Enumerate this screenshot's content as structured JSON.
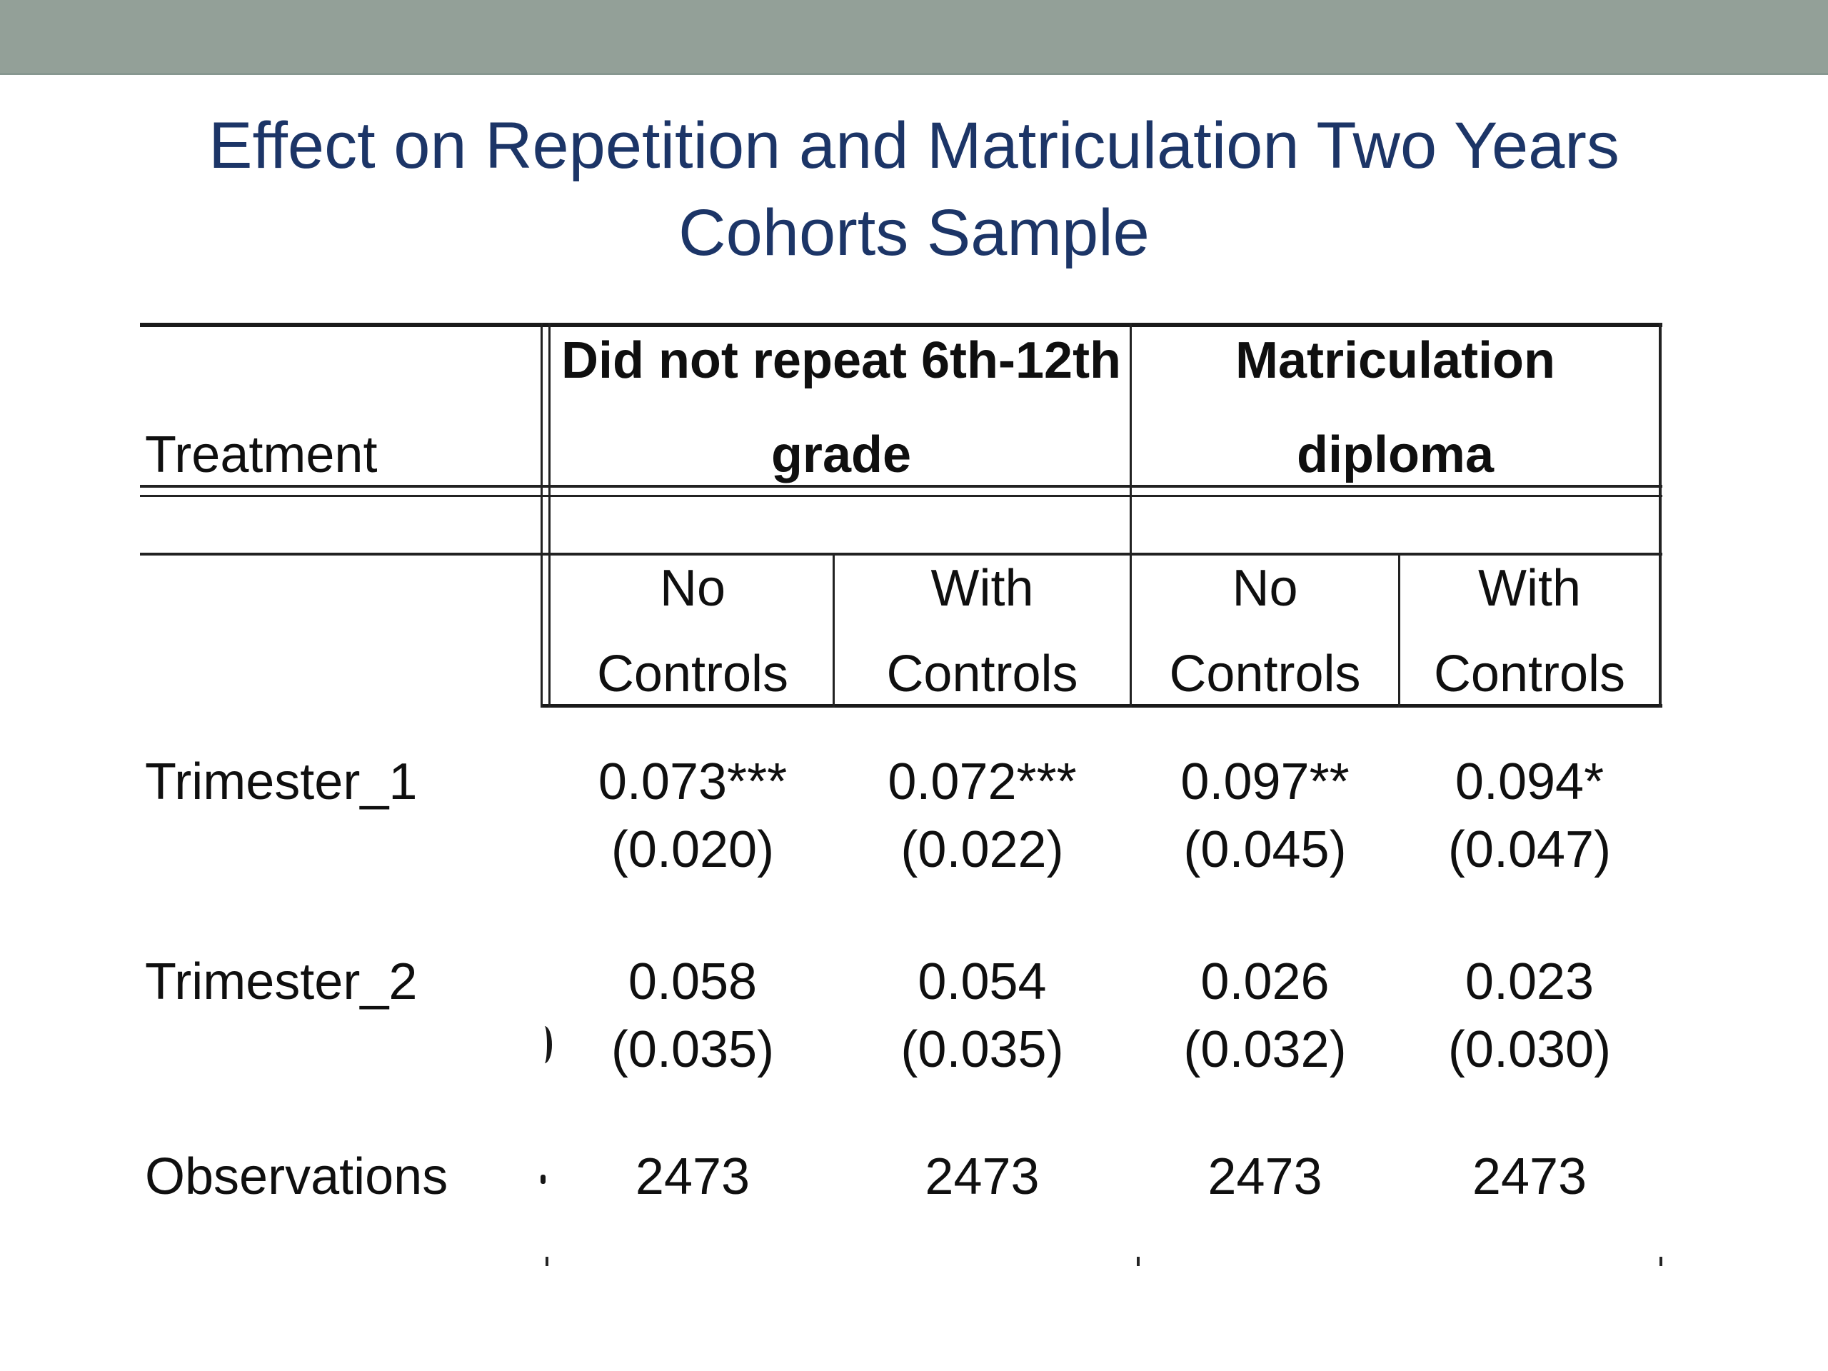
{
  "slide": {
    "title_line1": "Effect on Repetition and Matriculation Two Years",
    "title_line2": "Cohorts Sample"
  },
  "theme": {
    "band_color": "#93a098",
    "title_color": "#1c3567",
    "text_color": "#0f0f0f",
    "rule_color": "#1a1a1a",
    "background_color": "#ffffff"
  },
  "table": {
    "corner_label": "Treatment",
    "groups": [
      {
        "line1": "Did not repeat 6th-12th",
        "line2": "grade"
      },
      {
        "line1": "Matriculation",
        "line2": "diploma"
      }
    ],
    "subheaders": [
      {
        "line1": "No",
        "line2": "Controls"
      },
      {
        "line1": "With",
        "line2": "Controls"
      },
      {
        "line1": "No",
        "line2": "Controls"
      },
      {
        "line1": "With",
        "line2": "Controls"
      }
    ],
    "rows": [
      {
        "label": "Trimester_1",
        "values": [
          "0.073***",
          "0.072***",
          "0.097**",
          "0.094*"
        ],
        "se": [
          "(0.020)",
          "(0.022)",
          "(0.045)",
          "(0.047)"
        ]
      },
      {
        "label": "Trimester_2",
        "values": [
          "0.058",
          "0.054",
          "0.026",
          "0.023"
        ],
        "se": [
          "(0.035)",
          "(0.035)",
          "(0.032)",
          "(0.030)"
        ]
      },
      {
        "label": "Observations",
        "values": [
          "2473",
          "2473",
          "2473",
          "2473"
        ]
      }
    ]
  }
}
